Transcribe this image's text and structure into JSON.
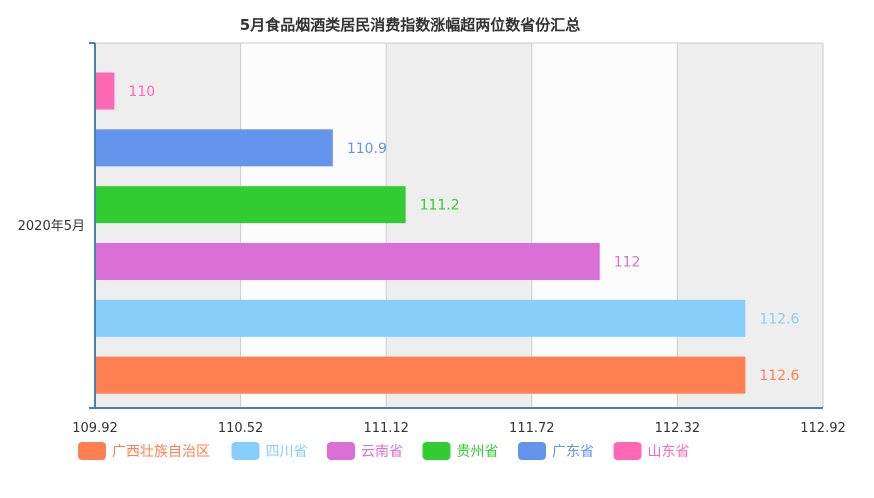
{
  "chart_data": {
    "type": "bar",
    "orientation": "horizontal",
    "title": "5月食品烟酒类居民消费指数涨幅超两位数省份汇总",
    "categories": [
      "2020年5月"
    ],
    "series": [
      {
        "name": "广西壮族自治区",
        "values": [
          112.6
        ],
        "color": "#ff7f50"
      },
      {
        "name": "四川省",
        "values": [
          112.6
        ],
        "color": "#87cefa"
      },
      {
        "name": "云南省",
        "values": [
          112
        ],
        "color": "#da70d6"
      },
      {
        "name": "贵州省",
        "values": [
          111.2
        ],
        "color": "#32cd32"
      },
      {
        "name": "广东省",
        "values": [
          110.9
        ],
        "color": "#6495ed"
      },
      {
        "name": "山东省",
        "values": [
          110
        ],
        "color": "#ff69b4"
      }
    ],
    "xlim": [
      109.92,
      112.92
    ],
    "xticks": [
      "109.92",
      "110.52",
      "111.12",
      "111.72",
      "112.32",
      "112.92"
    ],
    "grid": true,
    "legend_placement": "bottom"
  }
}
